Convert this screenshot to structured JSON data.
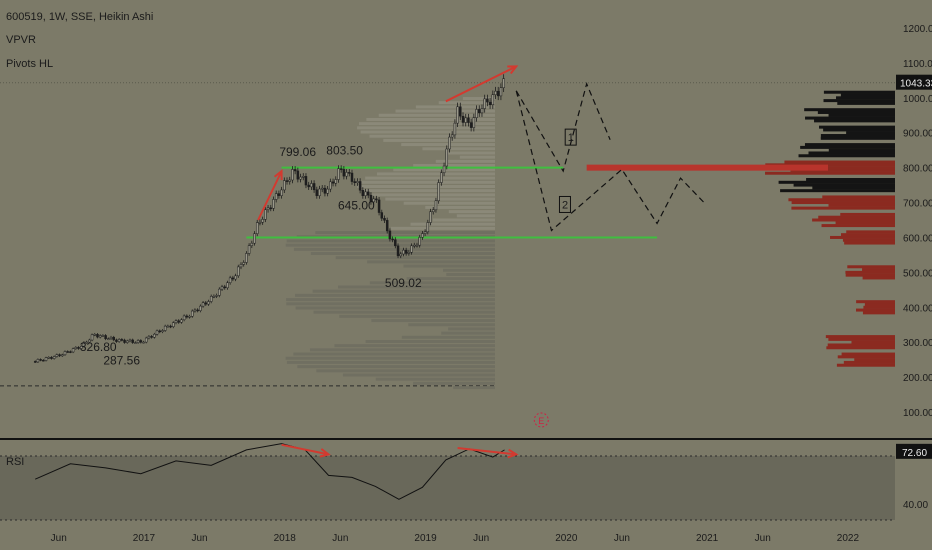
{
  "header": {
    "symbol_line": "600519, 1W, SSE, Heikin Ashi",
    "indicator_1": "VPVR",
    "indicator_2": "Pivots HL"
  },
  "rsi_label": "RSI",
  "colors": {
    "background": "#7c7a68",
    "candle": "#1e1e1e",
    "support_line": "#3fbf3f",
    "arrow": "#d23a30",
    "vol_black": "#141414",
    "vol_red": "#8b2a20",
    "price_tag": "#111111"
  },
  "chart_data": [
    {
      "type": "candlestick",
      "title": "600519, 1W, SSE, Heikin Ashi",
      "y_axis": {
        "ticks": [
          "1200.00",
          "1100.00",
          "1000.00",
          "900.00",
          "800.00",
          "700.00",
          "600.00",
          "500.00",
          "400.00",
          "300.00",
          "200.00",
          "100.00"
        ],
        "current_price": "1043.33"
      },
      "x_axis": {
        "ticks": [
          "Jun",
          "2017",
          "Jun",
          "2018",
          "Jun",
          "2019",
          "Jun",
          "2020",
          "Jun",
          "2021",
          "Jun",
          "2022"
        ]
      },
      "price_path": [
        [
          "2016-04",
          245
        ],
        [
          "2016-06",
          262
        ],
        [
          "2016-08",
          290
        ],
        [
          "2016-09",
          322
        ],
        [
          "2016-11",
          305
        ],
        [
          "2017-01",
          300
        ],
        [
          "2017-03",
          340
        ],
        [
          "2017-05",
          375
        ],
        [
          "2017-07",
          425
        ],
        [
          "2017-09",
          490
        ],
        [
          "2017-10",
          550
        ],
        [
          "2017-11",
          640
        ],
        [
          "2018-01",
          740
        ],
        [
          "2018-02",
          790
        ],
        [
          "2018-03",
          760
        ],
        [
          "2018-04",
          730
        ],
        [
          "2018-05",
          740
        ],
        [
          "2018-06",
          795
        ],
        [
          "2018-07",
          770
        ],
        [
          "2018-08",
          725
        ],
        [
          "2018-09",
          705
        ],
        [
          "2018-10",
          620
        ],
        [
          "2018-11",
          550
        ],
        [
          "2018-12",
          565
        ],
        [
          "2019-01",
          605
        ],
        [
          "2019-02",
          690
        ],
        [
          "2019-03",
          840
        ],
        [
          "2019-04",
          960
        ],
        [
          "2019-05",
          920
        ],
        [
          "2019-06",
          975
        ],
        [
          "2019-07",
          1000
        ],
        [
          "2019-08",
          1043
        ]
      ],
      "labels": [
        {
          "text": "326.80",
          "x": "2016-09",
          "y": 326.8
        },
        {
          "text": "287.56",
          "x": "2016-11",
          "y": 287.56
        },
        {
          "text": "799.06",
          "x": "2018-02",
          "y": 799.06
        },
        {
          "text": "803.50",
          "x": "2018-06",
          "y": 803.5
        },
        {
          "text": "645.00",
          "x": "2018-07",
          "y": 645.0
        },
        {
          "text": "509.02",
          "x": "2018-11",
          "y": 509.02
        }
      ],
      "support_lines": [
        {
          "y": 800,
          "from": "2018-01",
          "to": "2020-01"
        },
        {
          "y": 600,
          "from": "2017-10",
          "to": "2020-09"
        }
      ],
      "scenarios": [
        {
          "label": "1",
          "path": [
            [
              "2019-09",
              1020
            ],
            [
              "2020-01",
              790
            ],
            [
              "2020-03",
              1040
            ],
            [
              "2020-05",
              880
            ]
          ]
        },
        {
          "label": "2",
          "path": [
            [
              "2019-09",
              1020
            ],
            [
              "2019-12",
              620
            ],
            [
              "2020-06",
              795
            ],
            [
              "2020-09",
              640
            ],
            [
              "2020-11",
              770
            ],
            [
              "2021-01",
              700
            ]
          ]
        }
      ],
      "volume_profile_levels": [
        {
          "price": 1000,
          "volume": 0.55,
          "color": "black"
        },
        {
          "price": 950,
          "volume": 0.7,
          "color": "black"
        },
        {
          "price": 900,
          "volume": 0.6,
          "color": "black"
        },
        {
          "price": 850,
          "volume": 0.75,
          "color": "black"
        },
        {
          "price": 800,
          "volume": 1.0,
          "color": "red"
        },
        {
          "price": 750,
          "volume": 0.9,
          "color": "black"
        },
        {
          "price": 700,
          "volume": 0.85,
          "color": "red"
        },
        {
          "price": 650,
          "volume": 0.65,
          "color": "red"
        },
        {
          "price": 600,
          "volume": 0.5,
          "color": "red"
        },
        {
          "price": 500,
          "volume": 0.4,
          "color": "red"
        },
        {
          "price": 400,
          "volume": 0.3,
          "color": "red"
        },
        {
          "price": 300,
          "volume": 0.55,
          "color": "red"
        },
        {
          "price": 250,
          "volume": 0.45,
          "color": "red"
        }
      ]
    },
    {
      "type": "line",
      "title": "RSI",
      "y_axis": {
        "ticks": [
          "40.00"
        ],
        "current_value": "72.60"
      },
      "values": [
        [
          "2016-04",
          58
        ],
        [
          "2016-07",
          64
        ],
        [
          "2016-10",
          62
        ],
        [
          "2017-01",
          61
        ],
        [
          "2017-04",
          64
        ],
        [
          "2017-07",
          67
        ],
        [
          "2017-10",
          72
        ],
        [
          "2018-01",
          78
        ],
        [
          "2018-03",
          73
        ],
        [
          "2018-05",
          56
        ],
        [
          "2018-07",
          54
        ],
        [
          "2018-09",
          48
        ],
        [
          "2018-11",
          40
        ],
        [
          "2019-01",
          48
        ],
        [
          "2019-03",
          66
        ],
        [
          "2019-05",
          74
        ],
        [
          "2019-07",
          70
        ],
        [
          "2019-08",
          72.6
        ]
      ]
    }
  ]
}
